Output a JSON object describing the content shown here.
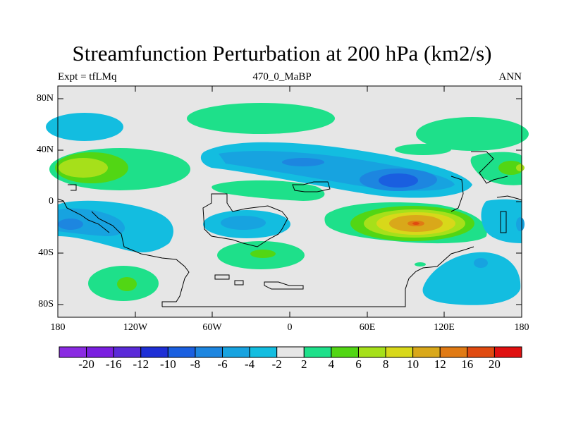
{
  "figure": {
    "title": "Streamfunction Perturbation at 200 hPa (km2/s)",
    "left_label": "Expt = tfLMq",
    "center_label": "470_0_MaBP",
    "right_label": "ANN"
  },
  "axes": {
    "y_ticks": [
      "80N",
      "40N",
      "0",
      "40S",
      "80S"
    ],
    "x_ticks": [
      "180",
      "120W",
      "60W",
      "0",
      "60E",
      "120E",
      "180"
    ]
  },
  "colorbar": {
    "colors": [
      "#8a2be2",
      "#7a1fe0",
      "#5a2ad8",
      "#1e2fd6",
      "#1a5fe0",
      "#1d86e0",
      "#17a3e0",
      "#13bde0",
      "#e6e6e6",
      "#1ee08a",
      "#52d614",
      "#a6e01a",
      "#d8d81a",
      "#d9a81a",
      "#e07a14",
      "#e04a10",
      "#e01010"
    ],
    "labels": [
      "-20",
      "-16",
      "-12",
      "-10",
      "-8",
      "-6",
      "-4",
      "-2",
      "2",
      "4",
      "6",
      "8",
      "10",
      "12",
      "16",
      "20"
    ]
  },
  "colors": {
    "background": "#e6e6e6",
    "neg4": "#13bde0",
    "neg6": "#17a3e0",
    "neg8": "#1d86e0",
    "neg10": "#1a5fe0",
    "pos2": "#1ee08a",
    "pos4": "#52d614",
    "pos6": "#a6e01a",
    "pos8": "#d8d81a",
    "pos10": "#d9a81a",
    "pos12": "#e07a14",
    "pos16": "#e04a10"
  }
}
